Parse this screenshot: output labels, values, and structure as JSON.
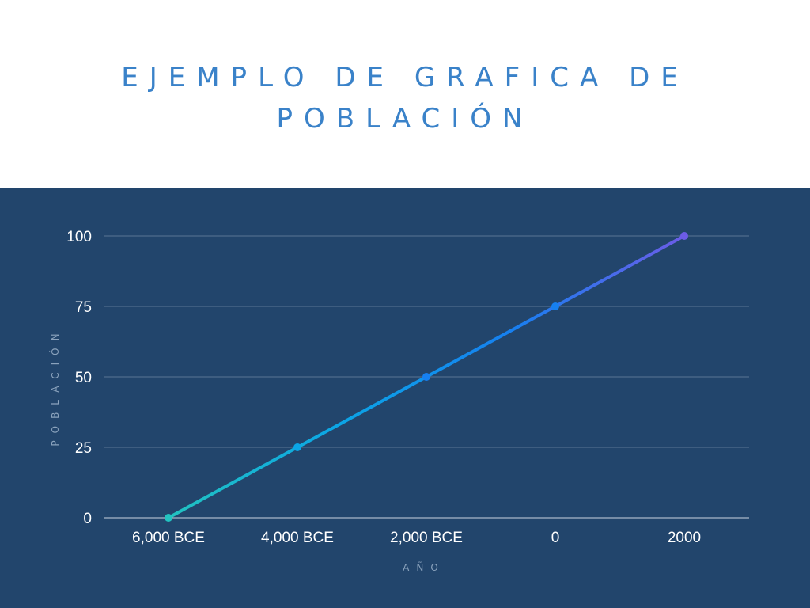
{
  "title": "EJEMPLO DE GRAFICA DE POBLACIÓN",
  "colors": {
    "panel_background": "#22456c",
    "title": "#3a82c9",
    "gridline": "#5a7595",
    "axis_title": "#8ba3bd",
    "line_gradient": [
      "#22c3c0",
      "#0ba5e6",
      "#1680f0",
      "#6c5ce7"
    ]
  },
  "chart_data": {
    "type": "line",
    "title": "EJEMPLO DE GRAFICA DE POBLACIÓN",
    "xlabel": "AÑO",
    "ylabel": "POBLACIÓN",
    "categories": [
      "6,000 BCE",
      "4,000 BCE",
      "2,000 BCE",
      "0",
      "2000"
    ],
    "series": [
      {
        "values": [
          0,
          25,
          50,
          75,
          100
        ]
      }
    ],
    "yticks": [
      0,
      25,
      50,
      75,
      100
    ],
    "ylim": [
      0,
      100
    ],
    "grid": true,
    "legend": "none"
  }
}
